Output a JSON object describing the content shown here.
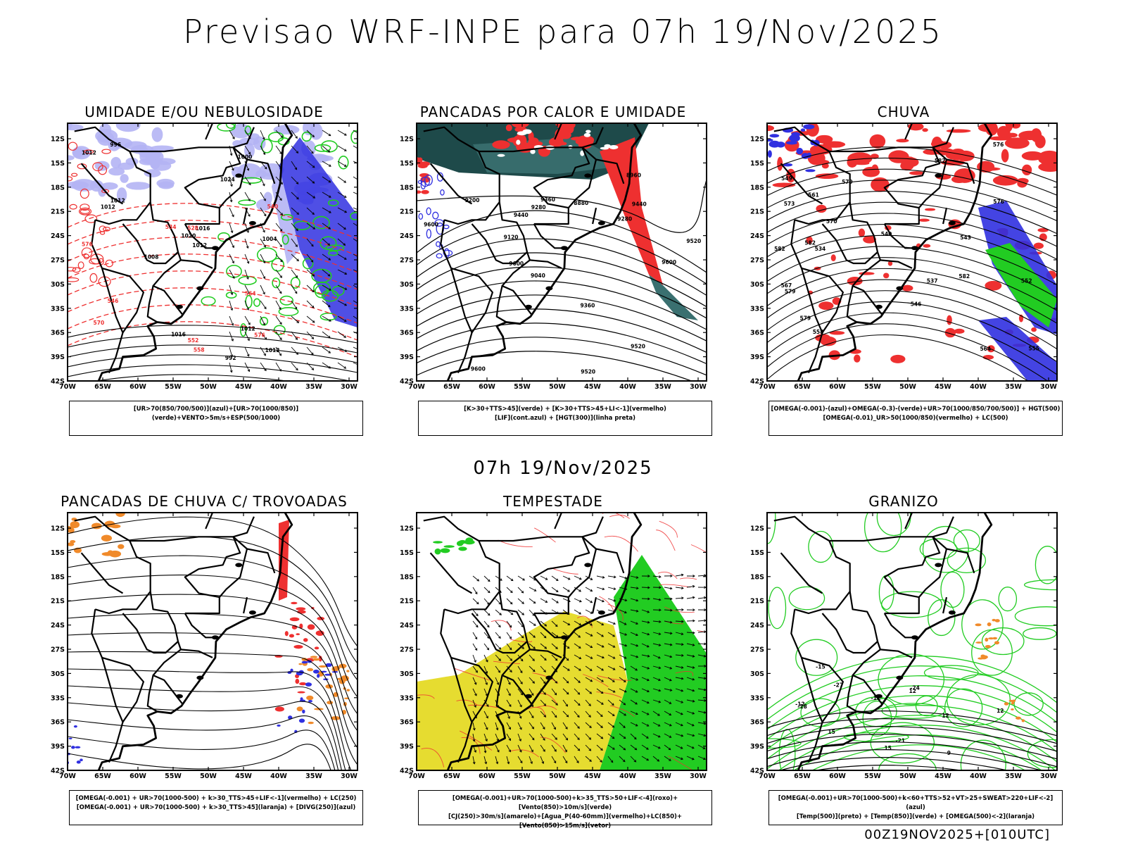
{
  "header": {
    "title": "Previsao WRF-INPE  para 07h 19/Nov/2025"
  },
  "middle": {
    "datetime": "07h 19/Nov/2025"
  },
  "footer": {
    "run_label": "00Z19NOV2025+[010UTC]"
  },
  "axes": {
    "lat_labels": [
      "12S",
      "15S",
      "18S",
      "21S",
      "24S",
      "27S",
      "30S",
      "33S",
      "36S",
      "39S",
      "42S"
    ],
    "lon_labels": [
      "70W",
      "65W",
      "60W",
      "55W",
      "50W",
      "45W",
      "40W",
      "35W",
      "30W"
    ]
  },
  "colors": {
    "blue": "#3030e0",
    "light_blue": "#b4b4f4",
    "green": "#22cc22",
    "red": "#ee3030",
    "dark_teal": "#1e4a4a",
    "teal": "#3a7070",
    "orange": "#f08a2a",
    "yellow": "#e6dc30"
  },
  "panels": [
    {
      "id": "umidade",
      "title": "UMIDADE E/OU NEBULOSIDADE",
      "legend": [
        "[UR>70(850/700/500)](azul)+[UR>70(1000/850)](verde)+VENTO>5m/s+ESP(500/1000)"
      ],
      "contour_labels": [
        "1012",
        "1012",
        "1012",
        "1012",
        "1012",
        "1012",
        "1008",
        "1004",
        "1000",
        "996",
        "992",
        "1016",
        "1016",
        "1020",
        "1024",
        "576",
        "576",
        "570",
        "564",
        "558",
        "552",
        "546",
        "540",
        "534",
        "528"
      ]
    },
    {
      "id": "calor",
      "title": "PANCADAS POR CALOR E UMIDADE",
      "legend": [
        "[K>30+TTS>45](verde) + [K>30+TTS>45+LI<-1](vermelho)",
        "[LIF](cont.azul) + [HGT(300)](linha preta)"
      ],
      "contour_labels": [
        "9600",
        "9600",
        "9600",
        "9600",
        "9520",
        "9520",
        "9520",
        "9440",
        "9440",
        "9360",
        "9360",
        "9280",
        "9200",
        "9120",
        "9040",
        "8960",
        "8880",
        "9280"
      ]
    },
    {
      "id": "chuva",
      "title": "CHUVA",
      "legend": [
        "[OMEGA(-0.001)-(azul)+OMEGA(-0.3)-(verde)+UR>70(1000/850/700/500)] + HGT(500)",
        "[OMEGA(-0.01)_UR>50(1000/850)(vermelho) + LC(500)"
      ],
      "contour_labels": [
        "582",
        "582",
        "582",
        "582",
        "579",
        "579",
        "579",
        "576",
        "576",
        "573",
        "570",
        "567",
        "564",
        "561",
        "558",
        "555",
        "552",
        "549",
        "546",
        "543",
        "540",
        "537",
        "534"
      ]
    },
    {
      "id": "trovoadas",
      "title": "PANCADAS DE CHUVA C/ TROVOADAS",
      "legend": [
        "[OMEGA(-0.001) + UR>70(1000-500) + k>30_TTS>45+LIF<-1](vermelho) + LC(250)",
        "[OMEGA(-0.001) + UR>70(1000-500) + k>30_TTS>45](laranja) + [DIVG(250)](azul)"
      ],
      "contour_labels": []
    },
    {
      "id": "tempestade",
      "title": "TEMPESTADE",
      "legend": [
        "[OMEGA(-0.001)+UR>70(1000-500)+k>35_TTS>50+LIF<-4](roxo)+[Vento(850)>10m/s](verde)",
        "[CJ(250)>30m/s](amarelo)+[Agua_P(40-60mm)](vermelho)+LC(850)+[Vento(850)>15m/s](vetor)"
      ],
      "contour_labels": []
    },
    {
      "id": "granizo",
      "title": "GRANIZO",
      "legend": [
        "[OMEGA(-0.001)+UR>70(1000-500)+k<60+TTS>52+VT>25+SWEAT>220+LIF<-2](azul)",
        "[Temp(500)](preto) + [Temp(850)](verde) + [OMEGA(500)<-2](laranja)"
      ],
      "contour_labels": [
        "-12",
        "-12",
        "-15",
        "-18",
        "-21",
        "-24",
        "-27",
        "15",
        "12",
        "12",
        "9",
        "12",
        "15"
      ]
    }
  ]
}
